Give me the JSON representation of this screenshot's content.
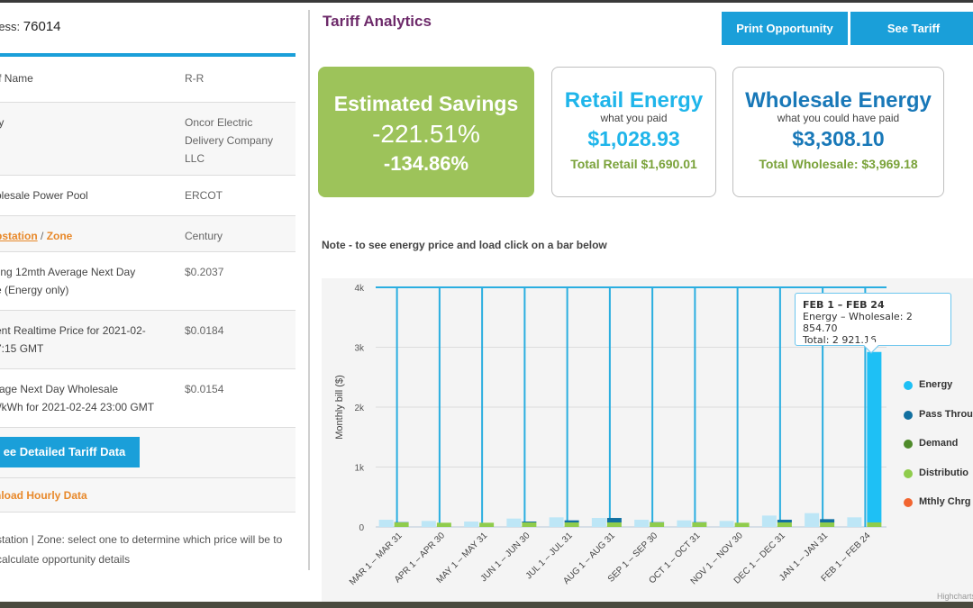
{
  "left": {
    "address_label": "ress:",
    "address_value": "76014",
    "rows": [
      {
        "key": "ff Name",
        "value": "R-R"
      },
      {
        "key": "ty",
        "value": "Oncor Electric Delivery Company LLC"
      },
      {
        "key": "olesale Power Pool",
        "value": "ERCOT"
      },
      {
        "key_link": "bstation",
        "key_slash": " / ",
        "key_zone": "Zone",
        "value": "Century"
      },
      {
        "key": "ling 12mth Average Next Day",
        "key2": "e (Energy only)",
        "value": "$0.2037"
      },
      {
        "key": "ent Realtime Price for 2021-02-",
        "key2": "7:15 GMT",
        "value": "$0.0184"
      },
      {
        "key": "rage Next Day Wholesale",
        "key2": "t/kWh for 2021-02-24 23:00 GMT",
        "value": "$0.0154"
      }
    ],
    "detail_button": "ee Detailed Tariff Data",
    "download_link": "nload Hourly Data",
    "footnote": "station | Zone: select one to determine which price will be to calculate opportunity details"
  },
  "header": {
    "title": "Tariff Analytics",
    "print_button": "Print Opportunity",
    "tariff_button": "See Tariff"
  },
  "cards": {
    "savings": {
      "heading": "Estimated Savings",
      "pct1": "-221.51%",
      "pct2": "-134.86%",
      "color": "#9dc35a"
    },
    "retail": {
      "heading": "Retail Energy",
      "sub": "what you paid",
      "amount": "$1,028.93",
      "total": "Total Retail $1,690.01",
      "color": "#1fb5ea"
    },
    "wholesale": {
      "heading": "Wholesale Energy",
      "sub": "what you could have paid",
      "amount": "$3,308.10",
      "total": "Total Wholesale: $3,969.18",
      "color": "#1878b8"
    }
  },
  "note": "Note - to see energy price and load click on a bar below",
  "chart_data": {
    "type": "bar",
    "ylabel": "Monthly bill ($)",
    "ylim": [
      0,
      4000
    ],
    "yticks": [
      "0",
      "1k",
      "2k",
      "3k",
      "4k"
    ],
    "grid": true,
    "legend_position": "right",
    "categories": [
      "MAR 1 – MAR 31",
      "APR 1 – APR 30",
      "MAY 1 – MAY 31",
      "JUN 1 – JUN 30",
      "JUL 1 – JUL 31",
      "AUG 1 – AUG 31",
      "SEP 1 – SEP 30",
      "OCT 1 – OCT 31",
      "NOV 1 – NOV 30",
      "DEC 1 – DEC 31",
      "JAN 1 – JAN 31",
      "FEB 1 – FEB 24"
    ],
    "retail_totals": [
      120,
      100,
      90,
      140,
      160,
      150,
      120,
      110,
      100,
      190,
      230,
      160
    ],
    "wholesale_totals": [
      80,
      70,
      70,
      90,
      110,
      150,
      80,
      80,
      70,
      120,
      130,
      2921.16
    ],
    "series": [
      {
        "name": "Energy",
        "color": "#1ec0f5"
      },
      {
        "name": "Pass Throu",
        "color": "#1270a0"
      },
      {
        "name": "Demand",
        "color": "#4e8a2a"
      },
      {
        "name": "Distributio",
        "color": "#8fcc4c"
      },
      {
        "name": "Mthly Chrg",
        "color": "#f26530"
      }
    ],
    "tooltip": {
      "title": "FEB 1 – FEB 24",
      "line1": "Energy – Wholesale: 2 854.70",
      "line2": "Total: 2 921.16"
    },
    "credits": "Highcharts"
  }
}
